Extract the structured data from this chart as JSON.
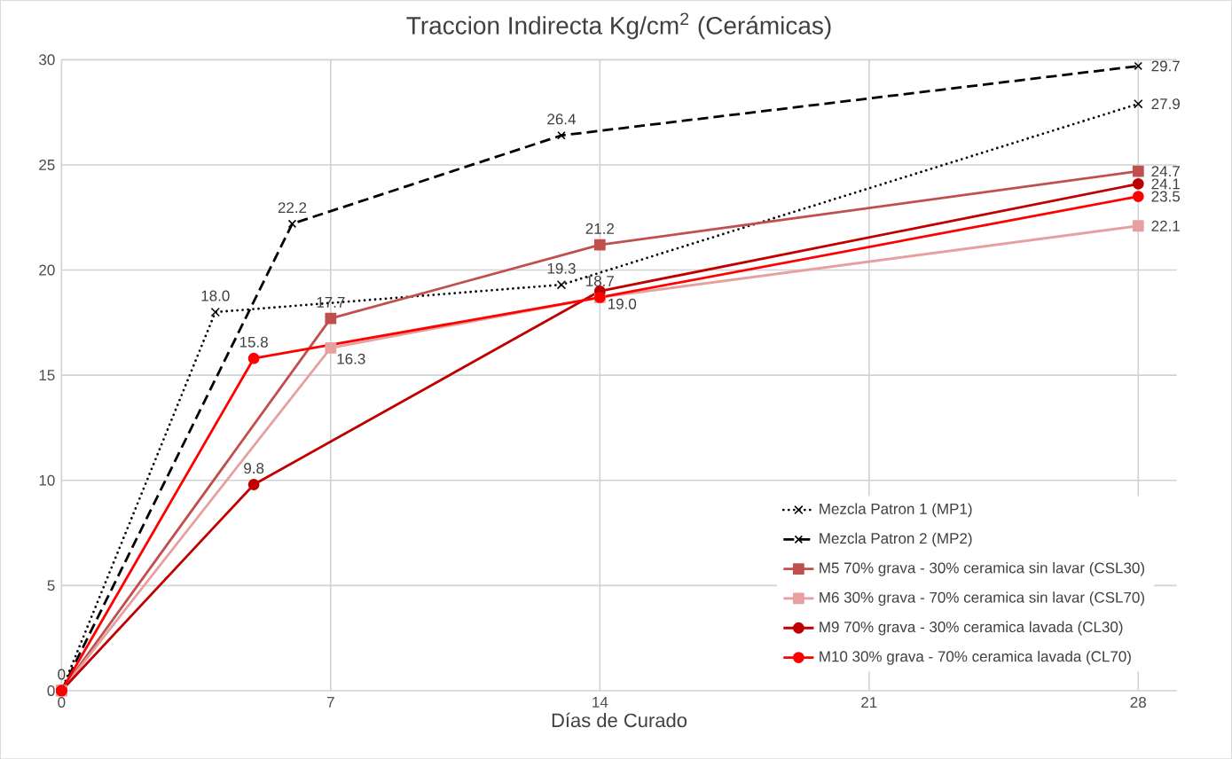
{
  "chart_data": {
    "type": "line",
    "title": "Traccion Indirecta Kg/cm$^{2}$ (Cerámicas)",
    "xlabel": "Días de Curado",
    "xlim": [
      0,
      29
    ],
    "xticks": [
      0,
      7,
      14,
      21,
      28
    ],
    "ylim": [
      0,
      30
    ],
    "yticks": [
      0,
      5,
      10,
      15,
      20,
      25,
      30
    ],
    "grid": true,
    "legend": "bottom right",
    "series": [
      {
        "name": "Mezcla Patron 1 (MP1)",
        "color": "#000000",
        "marker": "cross",
        "line_style": "dotted",
        "x": [
          0,
          4,
          13,
          28
        ],
        "values": [
          0,
          18.0,
          19.3,
          27.9
        ],
        "value_labels": [
          "0",
          "18.0",
          "19.3",
          "27.9"
        ]
      },
      {
        "name": "Mezcla Patron 2 (MP2)",
        "color": "#000000",
        "marker": "cross",
        "line_style": "dashed",
        "x": [
          0,
          6,
          13,
          28
        ],
        "values": [
          0,
          22.2,
          26.4,
          29.7
        ],
        "value_labels": [
          null,
          "22.2",
          "26.4",
          "29.7"
        ]
      },
      {
        "name": "M5 70% grava - 30% ceramica sin lavar (CSL30)",
        "color": "#c0504d",
        "marker": "square",
        "line_style": "solid",
        "x": [
          0,
          7,
          14,
          28
        ],
        "values": [
          0,
          17.7,
          21.2,
          24.7
        ],
        "value_labels": [
          null,
          "17.7",
          "21.2",
          "24.7"
        ]
      },
      {
        "name": "M6 30% grava - 70% ceramica sin lavar (CSL70)",
        "color": "#e6a0a0",
        "marker": "square",
        "line_style": "solid",
        "x": [
          0,
          7,
          14,
          28
        ],
        "values": [
          0,
          16.3,
          18.7,
          22.1
        ],
        "value_labels": [
          null,
          "16.3",
          null,
          "22.1"
        ]
      },
      {
        "name": "M9 70% grava - 30% ceramica lavada (CL30)",
        "color": "#c00000",
        "marker": "circle",
        "line_style": "solid",
        "x": [
          0,
          5,
          14,
          28
        ],
        "values": [
          0,
          9.8,
          19.0,
          24.1
        ],
        "value_labels": [
          null,
          "9.8",
          "19.0",
          "24.1"
        ]
      },
      {
        "name": "M10 30% grava - 70% ceramica lavada (CL70)",
        "color": "#ff0000",
        "marker": "circle",
        "line_style": "solid",
        "x": [
          0,
          5,
          14,
          28
        ],
        "values": [
          0,
          15.8,
          18.7,
          23.5
        ],
        "value_labels": [
          null,
          "15.8",
          "18.7",
          "23.5"
        ]
      }
    ]
  }
}
